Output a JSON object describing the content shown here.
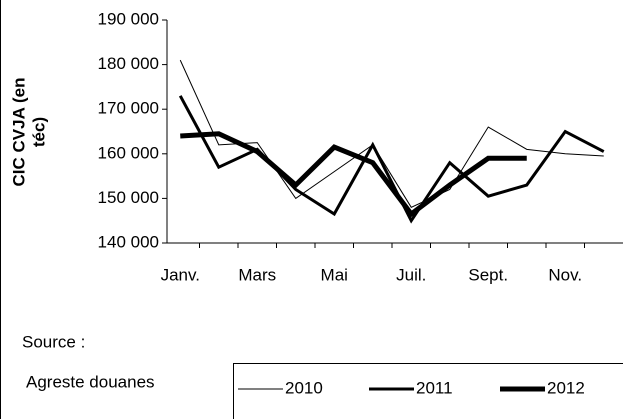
{
  "chart_data": {
    "type": "line",
    "ylabel": [
      "CIC CVJA (en",
      "téc)"
    ],
    "categories": [
      "Janv.",
      null,
      "Mars",
      null,
      "Mai",
      null,
      "Juil.",
      null,
      "Sept.",
      null,
      "Nov.",
      null
    ],
    "series": [
      {
        "name": "2010",
        "color": "#000000",
        "line_width": 1,
        "values": [
          181000,
          162000,
          162500,
          150000,
          156000,
          162000,
          148000,
          152000,
          166000,
          161000,
          160000,
          159500
        ]
      },
      {
        "name": "2011",
        "color": "#000000",
        "line_width": 3,
        "values": [
          173000,
          157000,
          161000,
          152000,
          146500,
          162000,
          145000,
          158000,
          150500,
          153000,
          165000,
          160500
        ]
      },
      {
        "name": "2012",
        "color": "#000000",
        "line_width": 5,
        "values": [
          164000,
          164500,
          160500,
          153000,
          161500,
          158000,
          146500,
          153000,
          159000,
          159000,
          null,
          null
        ]
      }
    ],
    "ylim": [
      140000,
      190000
    ],
    "yticks": [
      {
        "value": 140000,
        "label": "140 000"
      },
      {
        "value": 150000,
        "label": "150 000"
      },
      {
        "value": 160000,
        "label": "160 000"
      },
      {
        "value": 170000,
        "label": "170 000"
      },
      {
        "value": 180000,
        "label": "180 000"
      },
      {
        "value": 190000,
        "label": "190 000"
      }
    ],
    "source": [
      "Source :",
      "Agreste douanes"
    ]
  }
}
